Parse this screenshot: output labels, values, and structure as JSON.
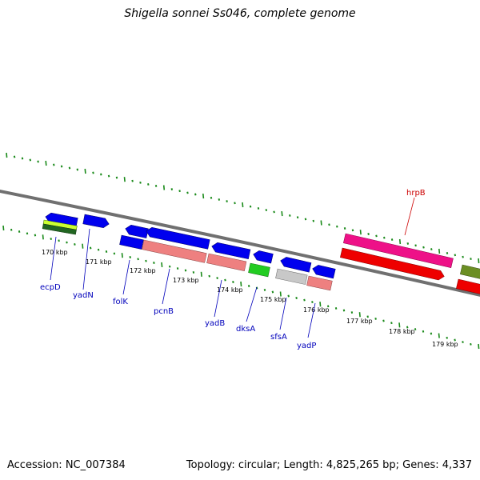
{
  "title": "Shigella sonnei Ss046, complete genome",
  "footer": {
    "accession": "Accession: NC_007384",
    "summary": "Topology: circular; Length: 4,825,265 bp; Genes: 4,337"
  },
  "tick_labels": [
    "170 kbp",
    "171 kbp",
    "172 kbp",
    "173 kbp",
    "174 kbp",
    "175 kbp",
    "176 kbp",
    "177 kbp",
    "178 kbp",
    "179 kbp"
  ],
  "gene_labels": [
    "ecpD",
    "yadN",
    "folK",
    "pcnB",
    "yadB",
    "dksA",
    "sfsA",
    "yadP",
    "hrpB"
  ],
  "colors": {
    "cds_forward": "#0000ee",
    "cds_reverse": "#0000ee",
    "pink_gene": "#ee8080",
    "hrpB": "#ee1188",
    "red_gene": "#ee0000",
    "green_gene": "#22cc22",
    "olive_gene": "#6b8e23",
    "gray_gene": "#c8c8c8",
    "tick": "#1a8a1a",
    "backbone": "#808080"
  }
}
